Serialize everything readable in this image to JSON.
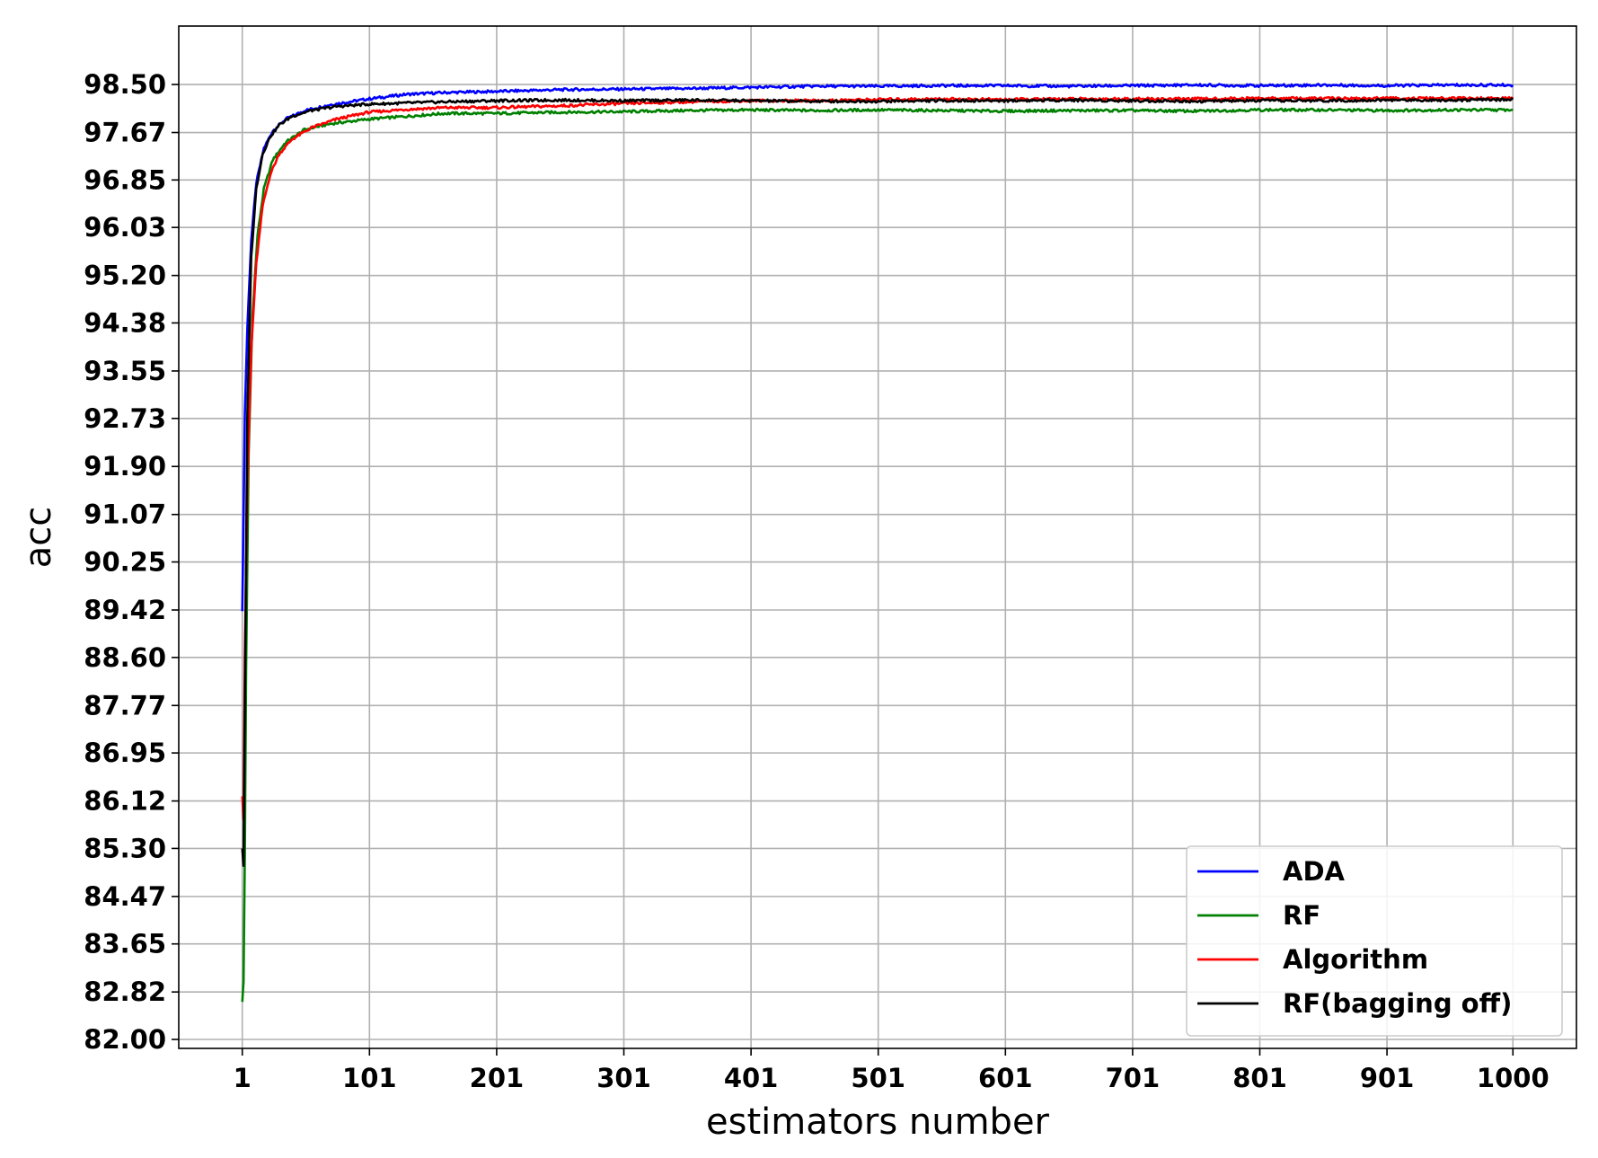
{
  "chart_data": {
    "type": "line",
    "title": "",
    "xlabel": "estimators number",
    "ylabel": "acc",
    "xlim": [
      1,
      1000
    ],
    "ylim": [
      82.0,
      98.5
    ],
    "xticks": [
      "1",
      "101",
      "201",
      "301",
      "401",
      "501",
      "601",
      "701",
      "801",
      "901",
      "1000"
    ],
    "yticks": [
      "82.00",
      "82.82",
      "83.65",
      "84.47",
      "85.30",
      "86.12",
      "86.95",
      "87.77",
      "88.60",
      "89.42",
      "90.25",
      "91.07",
      "91.90",
      "92.73",
      "93.55",
      "94.38",
      "95.20",
      "96.03",
      "96.85",
      "97.67",
      "98.50"
    ],
    "grid": true,
    "legend_position": "lower right",
    "series": [
      {
        "name": "ADA",
        "color": "#0000ff",
        "x": [
          1,
          2,
          3,
          5,
          8,
          12,
          18,
          25,
          35,
          50,
          70,
          100,
          130,
          160,
          200,
          250,
          300,
          350,
          400,
          450,
          500,
          550,
          600,
          650,
          700,
          750,
          800,
          850,
          900,
          950,
          1000
        ],
        "y": [
          89.4,
          91.0,
          92.8,
          94.3,
          95.8,
          96.8,
          97.4,
          97.7,
          97.9,
          98.05,
          98.15,
          98.25,
          98.33,
          98.36,
          98.38,
          98.41,
          98.42,
          98.43,
          98.45,
          98.47,
          98.47,
          98.48,
          98.48,
          98.47,
          98.48,
          98.49,
          98.48,
          98.49,
          98.48,
          98.49,
          98.49
        ]
      },
      {
        "name": "RF",
        "color": "#008000",
        "x": [
          1,
          2,
          3,
          4,
          6,
          9,
          13,
          18,
          25,
          35,
          50,
          70,
          100,
          130,
          160,
          200,
          250,
          300,
          350,
          400,
          450,
          500,
          550,
          600,
          650,
          700,
          750,
          800,
          850,
          900,
          950,
          1000
        ],
        "y": [
          82.65,
          83.0,
          85.2,
          88.4,
          92.1,
          94.5,
          95.9,
          96.7,
          97.2,
          97.5,
          97.72,
          97.82,
          97.9,
          97.95,
          98.0,
          98.0,
          98.02,
          98.03,
          98.05,
          98.06,
          98.05,
          98.06,
          98.05,
          98.04,
          98.05,
          98.05,
          98.04,
          98.06,
          98.06,
          98.05,
          98.06,
          98.06
        ]
      },
      {
        "name": "Algorithm",
        "color": "#ff0000",
        "x": [
          1,
          2,
          3,
          5,
          8,
          12,
          17,
          23,
          30,
          40,
          55,
          75,
          100,
          130,
          160,
          200,
          250,
          300,
          350,
          400,
          450,
          500,
          550,
          600,
          650,
          700,
          750,
          800,
          850,
          900,
          950,
          1000
        ],
        "y": [
          86.2,
          85.8,
          88.6,
          91.6,
          93.9,
          95.4,
          96.4,
          96.95,
          97.3,
          97.55,
          97.75,
          97.9,
          98.02,
          98.07,
          98.1,
          98.1,
          98.13,
          98.17,
          98.2,
          98.22,
          98.22,
          98.24,
          98.25,
          98.24,
          98.25,
          98.25,
          98.25,
          98.26,
          98.26,
          98.26,
          98.26,
          98.26
        ]
      },
      {
        "name": "RF(bagging off)",
        "color": "#000000",
        "x": [
          1,
          2,
          3,
          5,
          8,
          12,
          17,
          23,
          30,
          40,
          55,
          75,
          100,
          130,
          160,
          200,
          250,
          300,
          350,
          400,
          450,
          500,
          550,
          600,
          650,
          700,
          750,
          800,
          850,
          900,
          950,
          1000
        ],
        "y": [
          85.3,
          85.0,
          87.8,
          92.8,
          95.5,
          96.7,
          97.3,
          97.6,
          97.8,
          97.95,
          98.05,
          98.12,
          98.16,
          98.18,
          98.2,
          98.22,
          98.23,
          98.22,
          98.23,
          98.22,
          98.21,
          98.21,
          98.22,
          98.22,
          98.23,
          98.22,
          98.21,
          98.22,
          98.22,
          98.23,
          98.23,
          98.24
        ]
      }
    ]
  }
}
